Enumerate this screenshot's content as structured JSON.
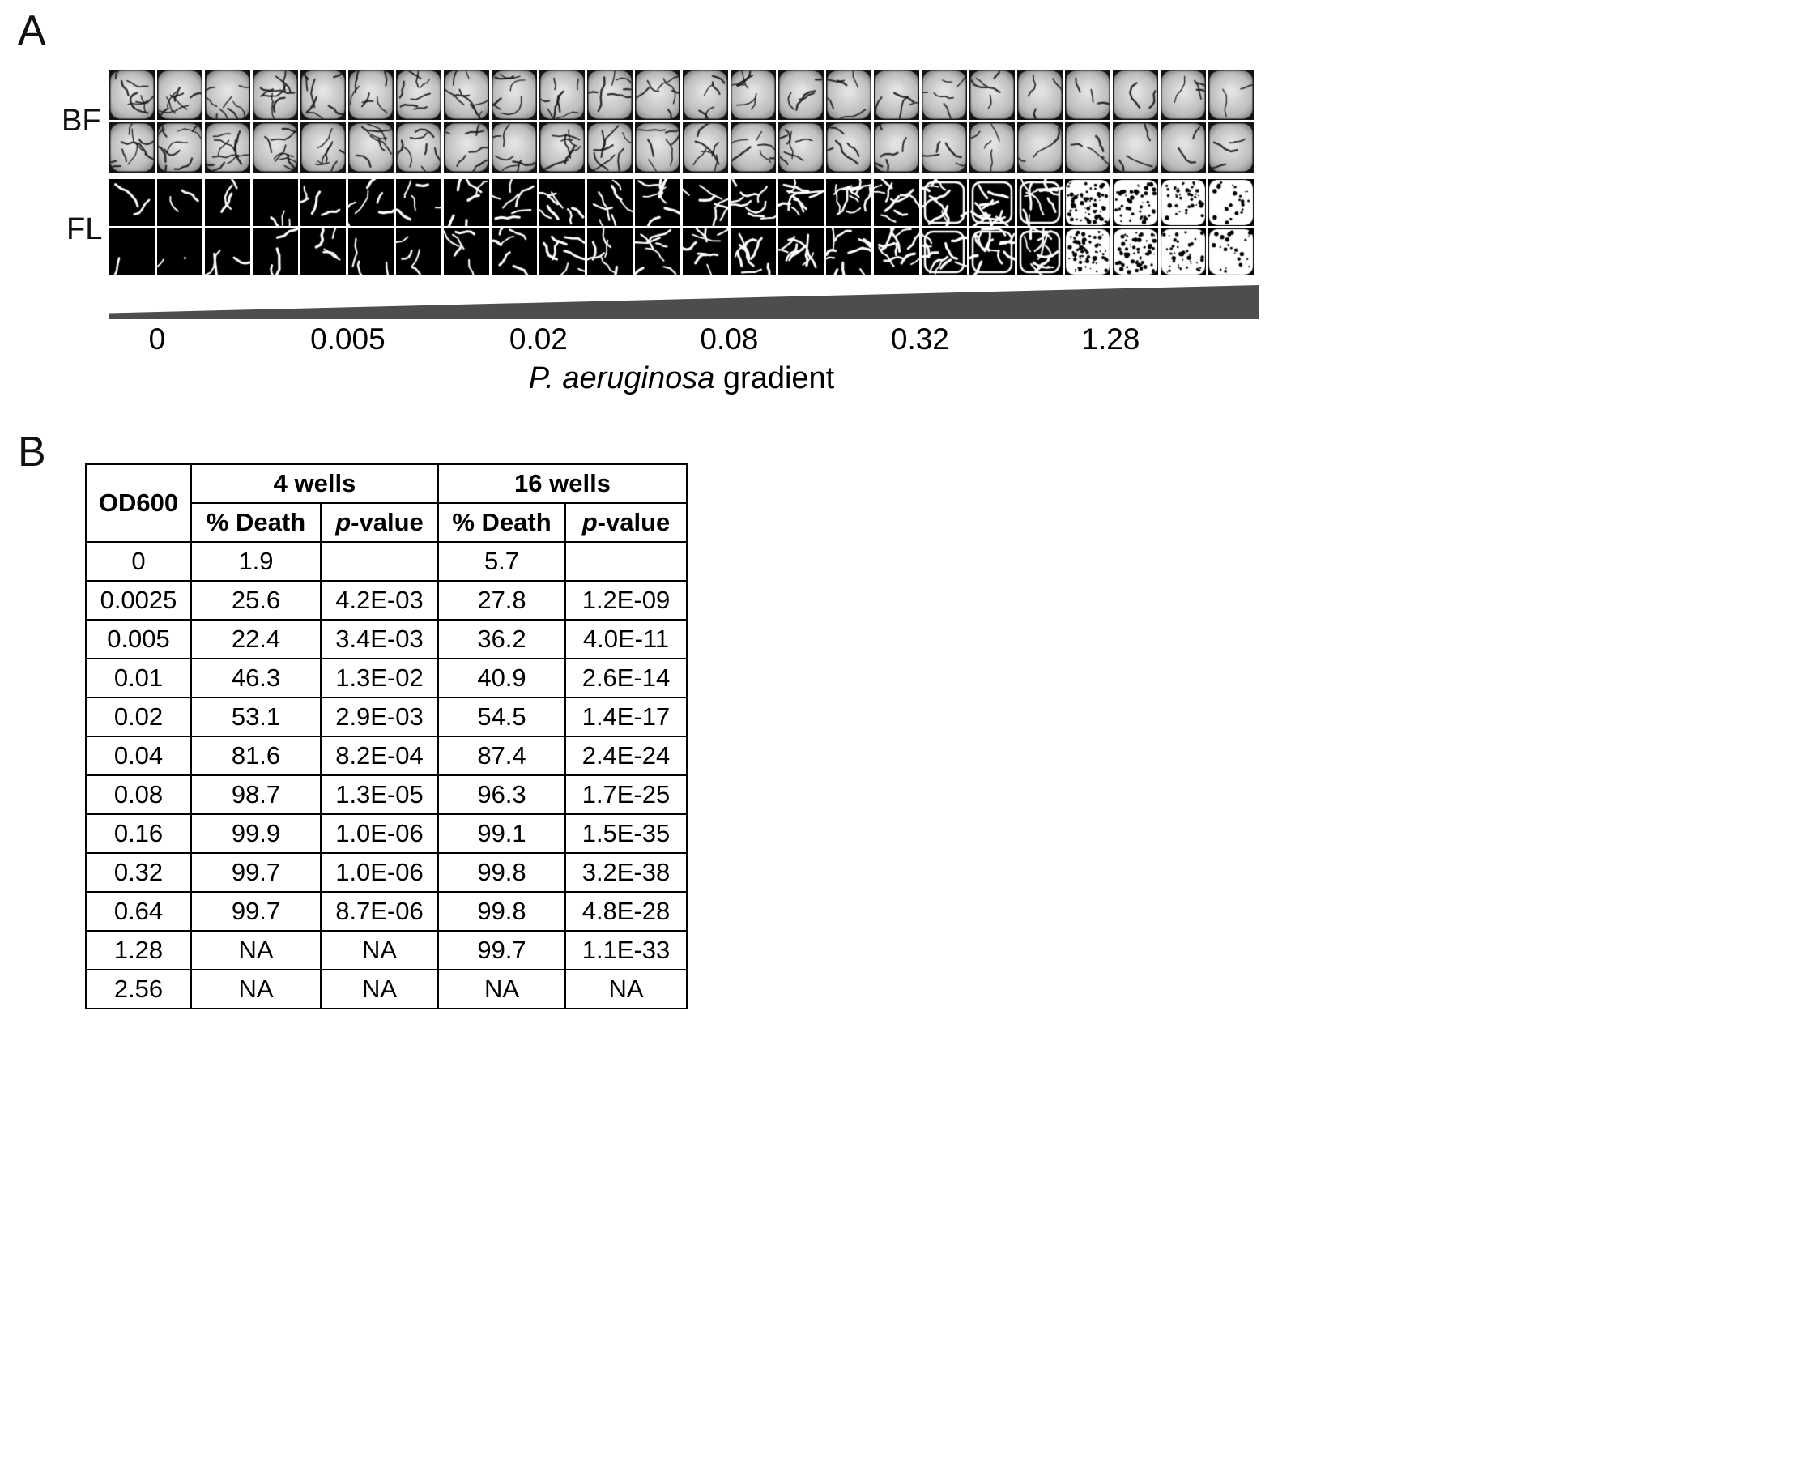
{
  "colors": {
    "triangle": "#4d4d4d",
    "table_border": "#000000",
    "fl_background": "#000000"
  },
  "panelA": {
    "label": "A",
    "bf_label": "BF",
    "fl_label": "FL",
    "wells_per_row": 24,
    "well_rows": [
      {
        "name": "bf-well-row-1",
        "type": "bf"
      },
      {
        "name": "bf-well-row-2",
        "type": "bf"
      },
      {
        "name": "fl-well-row-1",
        "type": "fl"
      },
      {
        "name": "fl-well-row-2",
        "type": "fl"
      }
    ],
    "ticks": [
      "0",
      "0.005",
      "0.02",
      "0.08",
      "0.32",
      "1.28"
    ],
    "gradient_label_italic": "P. aeruginosa",
    "gradient_label_rest": " gradient"
  },
  "panelB": {
    "label": "B",
    "table": {
      "od_header": "OD600",
      "groups": [
        "4 wells",
        "16 wells"
      ],
      "death_label": "% Death",
      "p_italic": "p",
      "p_rest": "-value",
      "rows": [
        [
          "0",
          "1.9",
          "",
          "5.7",
          ""
        ],
        [
          "0.0025",
          "25.6",
          "4.2E-03",
          "27.8",
          "1.2E-09"
        ],
        [
          "0.005",
          "22.4",
          "3.4E-03",
          "36.2",
          "4.0E-11"
        ],
        [
          "0.01",
          "46.3",
          "1.3E-02",
          "40.9",
          "2.6E-14"
        ],
        [
          "0.02",
          "53.1",
          "2.9E-03",
          "54.5",
          "1.4E-17"
        ],
        [
          "0.04",
          "81.6",
          "8.2E-04",
          "87.4",
          "2.4E-24"
        ],
        [
          "0.08",
          "98.7",
          "1.3E-05",
          "96.3",
          "1.7E-25"
        ],
        [
          "0.16",
          "99.9",
          "1.0E-06",
          "99.1",
          "1.5E-35"
        ],
        [
          "0.32",
          "99.7",
          "1.0E-06",
          "99.8",
          "3.2E-38"
        ],
        [
          "0.64",
          "99.7",
          "8.7E-06",
          "99.8",
          "4.8E-28"
        ],
        [
          "1.28",
          "NA",
          "NA",
          "99.7",
          "1.1E-33"
        ],
        [
          "2.56",
          "NA",
          "NA",
          "NA",
          "NA"
        ]
      ]
    }
  }
}
